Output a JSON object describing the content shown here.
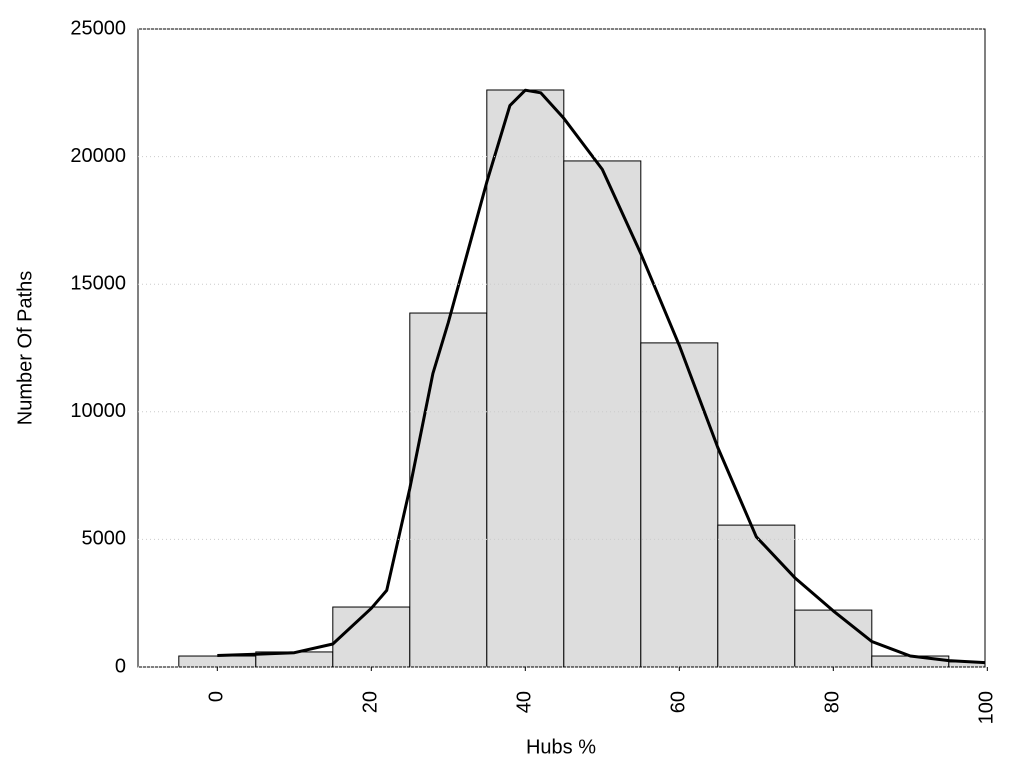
{
  "chart_data": {
    "type": "histogram",
    "xlabel": "Hubs %",
    "ylabel": "Number Of Paths",
    "bins": [
      -5,
      5,
      15,
      25,
      35,
      45,
      55,
      65,
      75,
      85,
      95,
      105
    ],
    "counts": [
      430,
      590,
      2350,
      13870,
      22610,
      19830,
      12700,
      5560,
      2230,
      430,
      200
    ],
    "bar_color": "#dddddd",
    "curve": {
      "x": [
        0,
        5,
        10,
        15,
        20,
        22,
        25,
        28,
        30,
        33,
        35,
        38,
        40,
        42,
        45,
        50,
        55,
        60,
        65,
        68,
        70,
        75,
        80,
        85,
        90,
        95,
        100
      ],
      "y": [
        450,
        500,
        560,
        900,
        2300,
        3000,
        7000,
        11500,
        13500,
        16800,
        19000,
        22000,
        22600,
        22500,
        21500,
        19500,
        16200,
        12600,
        8600,
        6500,
        5100,
        3500,
        2200,
        1000,
        430,
        250,
        170
      ],
      "color": "#000000"
    },
    "xlim": [
      -10.3,
      99.7
    ],
    "ylim": [
      0,
      25000
    ],
    "xticks": [
      0,
      20,
      40,
      60,
      80,
      100
    ],
    "yticks": [
      0,
      5000,
      10000,
      15000,
      20000,
      25000
    ],
    "grid": true
  }
}
